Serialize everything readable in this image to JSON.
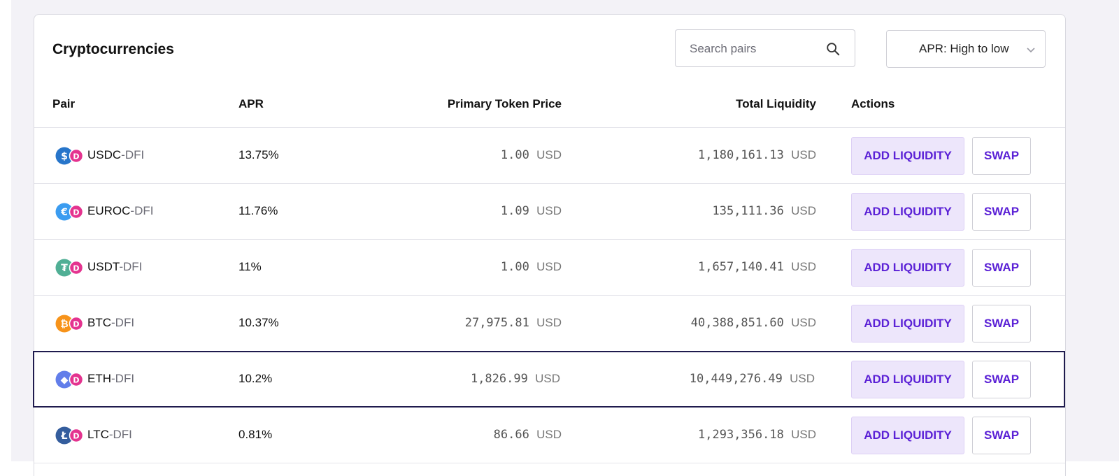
{
  "card": {
    "title": "Cryptocurrencies"
  },
  "search": {
    "placeholder": "Search pairs",
    "icon": "search-icon"
  },
  "sort": {
    "value": "APR: High to low",
    "icon": "chevron-down-icon"
  },
  "table": {
    "headers": {
      "pair": "Pair",
      "apr": "APR",
      "price": "Primary Token Price",
      "liquidity": "Total Liquidity",
      "actions": "Actions"
    },
    "rows": [
      {
        "base": "USDC",
        "quote": "-DFI",
        "apr": "13.75%",
        "price": "1.00",
        "price_unit": "USD",
        "liquidity": "1,180,161.13",
        "liquidity_unit": "USD",
        "add_label": "ADD LIQUIDITY",
        "swap_label": "SWAP",
        "icon": "usdc-icon",
        "icon_color": "#2775ca",
        "selected": false
      },
      {
        "base": "EUROC",
        "quote": "-DFI",
        "apr": "11.76%",
        "price": "1.09",
        "price_unit": "USD",
        "liquidity": "135,111.36",
        "liquidity_unit": "USD",
        "add_label": "ADD LIQUIDITY",
        "swap_label": "SWAP",
        "icon": "euroc-icon",
        "icon_color": "#3b9cf0",
        "selected": false
      },
      {
        "base": "USDT",
        "quote": "-DFI",
        "apr": "11%",
        "price": "1.00",
        "price_unit": "USD",
        "liquidity": "1,657,140.41",
        "liquidity_unit": "USD",
        "add_label": "ADD LIQUIDITY",
        "swap_label": "SWAP",
        "icon": "usdt-icon",
        "icon_color": "#50af95",
        "selected": false
      },
      {
        "base": "BTC",
        "quote": "-DFI",
        "apr": "10.37%",
        "price": "27,975.81",
        "price_unit": "USD",
        "liquidity": "40,388,851.60",
        "liquidity_unit": "USD",
        "add_label": "ADD LIQUIDITY",
        "swap_label": "SWAP",
        "icon": "btc-icon",
        "icon_color": "#f7931a",
        "selected": false
      },
      {
        "base": "ETH",
        "quote": "-DFI",
        "apr": "10.2%",
        "price": "1,826.99",
        "price_unit": "USD",
        "liquidity": "10,449,276.49",
        "liquidity_unit": "USD",
        "add_label": "ADD LIQUIDITY",
        "swap_label": "SWAP",
        "icon": "eth-icon",
        "icon_color": "#627eea",
        "selected": true
      },
      {
        "base": "LTC",
        "quote": "-DFI",
        "apr": "0.81%",
        "price": "86.66",
        "price_unit": "USD",
        "liquidity": "1,293,356.18",
        "liquidity_unit": "USD",
        "add_label": "ADD LIQUIDITY",
        "swap_label": "SWAP",
        "icon": "ltc-icon",
        "icon_color": "#345d9d",
        "selected": false
      }
    ],
    "dfi_icon": "dfi-icon",
    "dfi_color": "#e4338f"
  },
  "colors": {
    "accent": "#5b21d6",
    "accent_bg": "#ede6fb",
    "selected_border": "#1f1b4e"
  }
}
